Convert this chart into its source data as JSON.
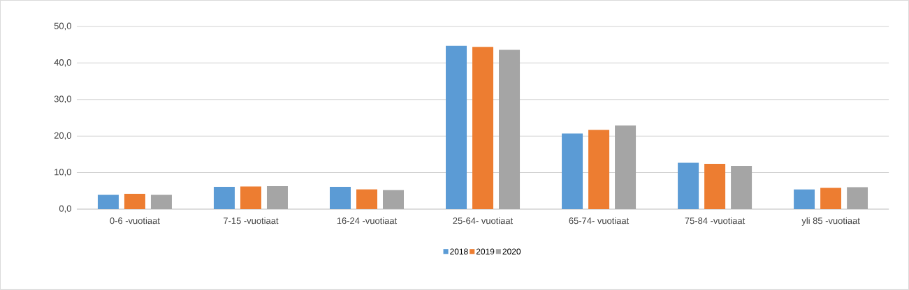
{
  "chart_data": {
    "type": "bar",
    "categories": [
      "0-6 -vuotiaat",
      "7-15 -vuotiaat",
      "16-24 -vuotiaat",
      "25-64- vuotiaat",
      "65-74- vuotiaat",
      "75-84 -vuotiaat",
      "yli 85 -vuotiaat"
    ],
    "series": [
      {
        "name": "2018",
        "color": "#5b9bd5",
        "values": [
          3.9,
          6.1,
          6.1,
          44.7,
          20.7,
          12.7,
          5.4
        ]
      },
      {
        "name": "2019",
        "color": "#ed7d31",
        "values": [
          4.2,
          6.2,
          5.4,
          44.4,
          21.7,
          12.4,
          5.8
        ]
      },
      {
        "name": "2020",
        "color": "#a5a5a5",
        "values": [
          3.9,
          6.3,
          5.2,
          43.6,
          22.9,
          11.8,
          6.0
        ]
      }
    ],
    "ylim": [
      0,
      50
    ],
    "yticks": [
      {
        "value": 0,
        "label": "0,0"
      },
      {
        "value": 10,
        "label": "10,0"
      },
      {
        "value": 20,
        "label": "20,0"
      },
      {
        "value": 30,
        "label": "30,0"
      },
      {
        "value": 40,
        "label": "40,0"
      },
      {
        "value": 50,
        "label": "50,0"
      }
    ],
    "grid": "y",
    "legend": "bottom"
  }
}
